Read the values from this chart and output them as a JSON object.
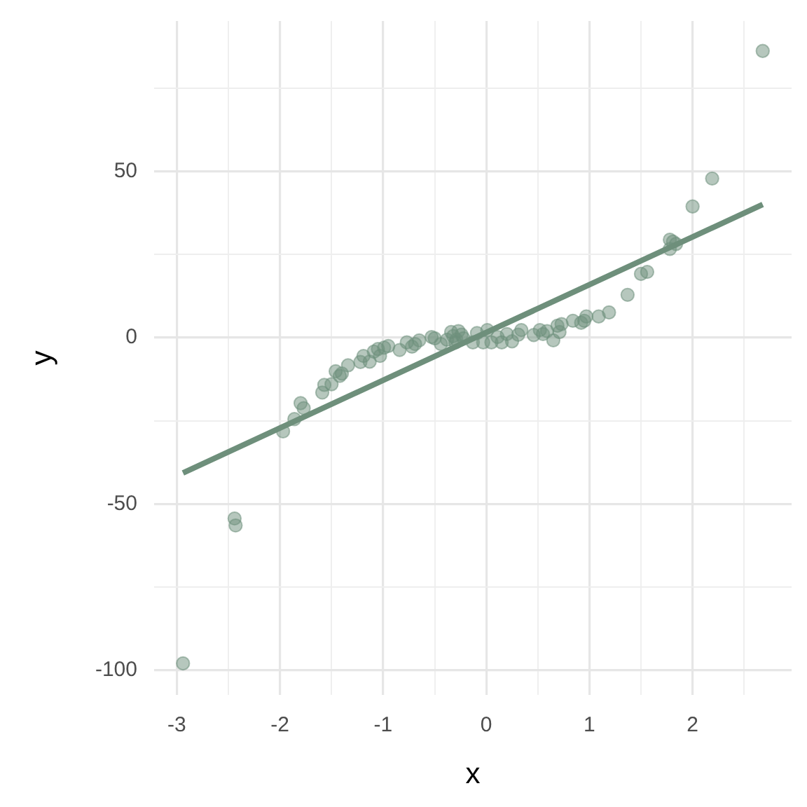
{
  "chart_data": {
    "type": "scatter",
    "xlabel": "x",
    "ylabel": "y",
    "xlim": [
      -3.22,
      2.96
    ],
    "ylim": [
      -107.5,
      95.3
    ],
    "xticks": [
      -3,
      {
        "value": -2.5,
        "label": null
      },
      -2,
      {
        "value": -1.5,
        "label": null
      },
      -1,
      {
        "value": -0.5,
        "label": null
      },
      0,
      {
        "value": 0.5,
        "label": null
      },
      1,
      {
        "value": 1.5,
        "label": null
      },
      2,
      {
        "value": 2.5,
        "label": null
      }
    ],
    "yticks": [
      -100,
      {
        "value": -75,
        "label": null
      },
      -50,
      {
        "value": -25,
        "label": null
      },
      0,
      {
        "value": 25,
        "label": null
      },
      50,
      {
        "value": 75,
        "label": null
      }
    ],
    "grid": true,
    "marker": "circle",
    "series": [
      {
        "type": "scatter",
        "color": "#6e8f7b",
        "x": [
          -2.94,
          -2.44,
          -2.43,
          -1.97,
          -1.86,
          -1.8,
          -1.77,
          -1.59,
          -1.57,
          -1.5,
          -1.46,
          -1.42,
          -1.4,
          -1.34,
          -1.22,
          -1.19,
          -1.13,
          -1.09,
          -1.05,
          -1.03,
          -0.99,
          -0.95,
          -0.84,
          -0.77,
          -0.72,
          -0.69,
          -0.65,
          -0.53,
          -0.5,
          -0.44,
          -0.38,
          -0.34,
          -0.32,
          -0.29,
          -0.27,
          -0.24,
          -0.3,
          -0.22,
          -0.13,
          -0.09,
          -0.03,
          0.01,
          0.05,
          0.11,
          0.15,
          0.2,
          0.25,
          0.31,
          0.34,
          0.46,
          0.52,
          0.55,
          0.59,
          0.65,
          0.69,
          0.71,
          0.73,
          0.84,
          0.92,
          0.97,
          0.95,
          1.09,
          1.19,
          1.37,
          1.5,
          1.56,
          1.78,
          1.78,
          1.81,
          1.84,
          2.0,
          2.19,
          2.68
        ],
        "values": [
          -98.0,
          -54.4,
          -56.5,
          -28.2,
          -24.5,
          -19.7,
          -21.2,
          -16.5,
          -14.2,
          -14.0,
          -10.1,
          -11.5,
          -10.8,
          -8.3,
          -7.3,
          -5.5,
          -7.2,
          -4.2,
          -3.4,
          -5.5,
          -3.0,
          -2.5,
          -3.7,
          -1.4,
          -2.7,
          -1.9,
          -0.8,
          0.2,
          -0.2,
          -1.9,
          -0.6,
          1.7,
          0.5,
          -0.6,
          2.0,
          0.9,
          -1.4,
          -0.2,
          -1.4,
          1.4,
          -1.4,
          2.3,
          -1.4,
          0.2,
          -1.4,
          1.1,
          -1.1,
          0.9,
          2.3,
          0.8,
          2.3,
          1.1,
          2.0,
          -0.8,
          3.6,
          1.7,
          4.1,
          5.1,
          4.5,
          6.4,
          5.1,
          6.4,
          7.6,
          12.9,
          19.2,
          19.8,
          26.7,
          29.5,
          28.9,
          28.2,
          39.5,
          47.9,
          86.3
        ]
      },
      {
        "type": "line",
        "color": "#6e8f7b",
        "marker": "none",
        "line_style": "solid",
        "x": [
          -2.94,
          2.68
        ],
        "values": [
          -40.7,
          40.1
        ]
      }
    ]
  }
}
